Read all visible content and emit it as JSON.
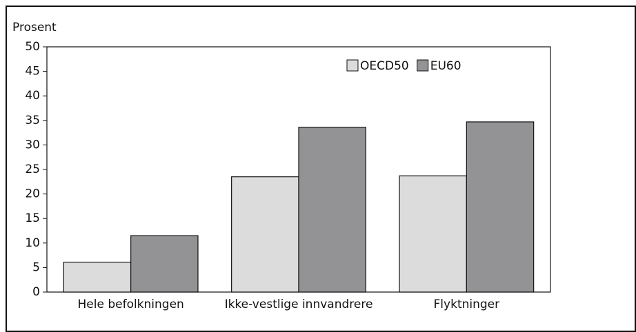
{
  "chart_data": {
    "type": "bar",
    "ylabel": "Prosent",
    "categories": [
      "Hele befolkningen",
      "Ikke-vestlige innvandrere",
      "Flyktninger"
    ],
    "series": [
      {
        "name": "OECD50",
        "color": "#dcdcdd",
        "values": [
          6.1,
          23.5,
          23.7
        ]
      },
      {
        "name": "EU60",
        "color": "#939396",
        "values": [
          11.5,
          33.6,
          34.7
        ]
      }
    ],
    "ylim": [
      0,
      50
    ],
    "yticks": [
      0,
      5,
      10,
      15,
      20,
      25,
      30,
      35,
      40,
      45,
      50
    ],
    "legend": "top-right"
  }
}
